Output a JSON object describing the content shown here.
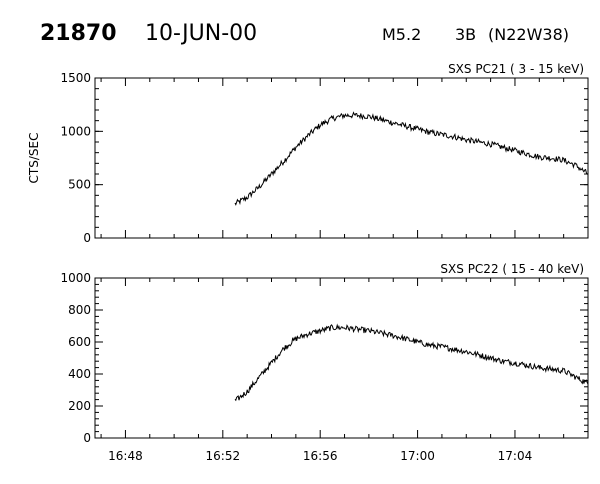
{
  "header": {
    "event_id": "21870",
    "date": "10-JUN-00",
    "flare_class": "M5.2",
    "optical_class": "3B",
    "location": "(N22W38)"
  },
  "chart_data": [
    {
      "type": "line",
      "title": "SXS PC21  (  3 - 15 keV)",
      "xlabel": "",
      "ylabel": "CTS/SEC",
      "xlim": [
        "16:46:45",
        "17:07:00"
      ],
      "ylim": [
        0,
        1500
      ],
      "x_ticks": [
        "16:48",
        "16:52",
        "16:56",
        "17:00",
        "17:04"
      ],
      "y_ticks": [
        "0",
        "500",
        "1000",
        "1500"
      ],
      "grid": false,
      "series": [
        {
          "x": [
            "16:52:30",
            "16:53:00",
            "16:53:30",
            "16:54:00",
            "16:54:30",
            "16:55:00",
            "16:55:30",
            "16:56:00",
            "16:56:30",
            "16:57:00",
            "16:57:30",
            "16:58:00",
            "16:58:30",
            "16:59:00",
            "16:59:30",
            "17:00:00",
            "17:00:30",
            "17:01:00",
            "17:01:30",
            "17:02:00",
            "17:02:30",
            "17:03:00",
            "17:03:30",
            "17:04:00",
            "17:04:30",
            "17:05:00",
            "17:05:30",
            "17:06:00",
            "17:06:30",
            "17:07:00"
          ],
          "y": [
            320,
            380,
            480,
            600,
            720,
            850,
            960,
            1060,
            1120,
            1150,
            1150,
            1140,
            1110,
            1080,
            1050,
            1020,
            990,
            970,
            950,
            920,
            900,
            880,
            850,
            820,
            790,
            760,
            750,
            730,
            680,
            600
          ]
        }
      ]
    },
    {
      "type": "line",
      "title": "SXS PC22  ( 15 - 40 keV)",
      "xlabel": "",
      "ylabel": "",
      "xlim": [
        "16:46:45",
        "17:07:00"
      ],
      "ylim": [
        0,
        1000
      ],
      "x_ticks": [
        "16:48",
        "16:52",
        "16:56",
        "17:00",
        "17:04"
      ],
      "y_ticks": [
        "0",
        "200",
        "400",
        "600",
        "800",
        "1000"
      ],
      "grid": false,
      "series": [
        {
          "x": [
            "16:52:30",
            "16:53:00",
            "16:53:30",
            "16:54:00",
            "16:54:30",
            "16:55:00",
            "16:55:30",
            "16:56:00",
            "16:56:30",
            "16:57:00",
            "16:57:30",
            "16:58:00",
            "16:58:30",
            "16:59:00",
            "16:59:30",
            "17:00:00",
            "17:00:30",
            "17:01:00",
            "17:01:30",
            "17:02:00",
            "17:02:30",
            "17:03:00",
            "17:03:30",
            "17:04:00",
            "17:04:30",
            "17:05:00",
            "17:05:30",
            "17:06:00",
            "17:06:30",
            "17:07:00"
          ],
          "y": [
            230,
            290,
            380,
            470,
            560,
            620,
            650,
            670,
            690,
            690,
            680,
            670,
            655,
            640,
            620,
            600,
            580,
            570,
            555,
            540,
            520,
            500,
            480,
            470,
            455,
            440,
            430,
            420,
            380,
            340
          ]
        }
      ]
    }
  ]
}
